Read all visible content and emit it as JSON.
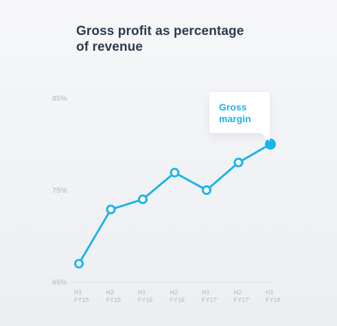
{
  "title_line1": "Gross profit as percentage",
  "title_line2": "of revenue",
  "chart_data": {
    "type": "line",
    "categories": [
      "H1 FY15",
      "H2 FY15",
      "H1 FY16",
      "H2 FY16",
      "H1 FY17'",
      "H2 FY17'",
      "H1 FY18"
    ],
    "category_lines": [
      [
        "H1",
        "FY15"
      ],
      [
        "H2",
        "FY15"
      ],
      [
        "H1",
        "FY16"
      ],
      [
        "H2",
        "FY16"
      ],
      [
        "H1",
        "FY17'"
      ],
      [
        "H2",
        "FY17'"
      ],
      [
        "H1",
        "FY18"
      ]
    ],
    "series": [
      {
        "name": "Gross margin",
        "values": [
          67.0,
          72.9,
          74.0,
          76.9,
          75.0,
          78.0,
          80.0
        ],
        "color": "#1ab4ea"
      }
    ],
    "yticks": [
      "85%",
      "75%",
      "65%"
    ],
    "ytick_values": [
      85,
      75,
      65
    ],
    "ylim": [
      65,
      85
    ],
    "grid": false,
    "legend": "callout at last point"
  }
}
